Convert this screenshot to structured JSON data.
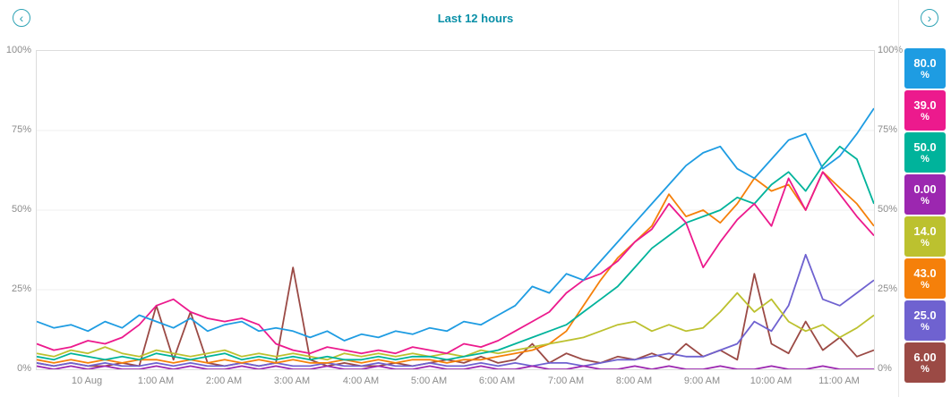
{
  "header": {
    "title": "Last 12 hours",
    "prev_icon": "‹",
    "next_icon": "›"
  },
  "chart_data": {
    "type": "line",
    "title": "Last 12 hours",
    "ylim": [
      0,
      100
    ],
    "grid": "horizontal",
    "legend_position": "right",
    "y_tick_labels": [
      "100%",
      "75%",
      "50%",
      "25%",
      "0%"
    ],
    "y_tick_values": [
      100,
      75,
      50,
      25,
      0
    ],
    "x_tick_labels": [
      "10 Aug",
      "1:00 AM",
      "2:00 AM",
      "3:00 AM",
      "4:00 AM",
      "5:00 AM",
      "6:00 AM",
      "7:00 AM",
      "8:00 AM",
      "9:00 AM",
      "10:00 AM",
      "11:00 AM"
    ],
    "x_tick_indices": [
      3,
      7,
      11,
      15,
      19,
      23,
      27,
      31,
      35,
      39,
      43,
      47
    ],
    "series": [
      {
        "name": "blue",
        "color": "#1e9ce2",
        "display": "80.0",
        "unit": "%",
        "values": [
          15,
          13,
          14,
          12,
          15,
          13,
          17,
          15,
          13,
          16,
          12,
          14,
          15,
          12,
          13,
          12,
          10,
          12,
          9,
          11,
          10,
          12,
          11,
          13,
          12,
          15,
          14,
          17,
          20,
          26,
          24,
          30,
          28,
          34,
          40,
          46,
          52,
          58,
          64,
          68,
          70,
          63,
          60,
          66,
          72,
          74,
          63,
          67,
          74,
          82
        ]
      },
      {
        "name": "pink",
        "color": "#ec1a8d",
        "display": "39.0",
        "unit": "%",
        "values": [
          8,
          6,
          7,
          9,
          8,
          10,
          14,
          20,
          22,
          18,
          16,
          15,
          16,
          14,
          8,
          6,
          5,
          7,
          6,
          5,
          6,
          5,
          7,
          6,
          5,
          8,
          7,
          9,
          12,
          15,
          18,
          24,
          28,
          30,
          34,
          40,
          44,
          52,
          46,
          32,
          40,
          47,
          52,
          45,
          60,
          50,
          62,
          55,
          48,
          42
        ]
      },
      {
        "name": "teal",
        "color": "#00b39b",
        "display": "50.0",
        "unit": "%",
        "values": [
          4,
          3,
          5,
          4,
          3,
          4,
          3,
          5,
          4,
          3,
          4,
          5,
          3,
          4,
          3,
          4,
          3,
          4,
          3,
          3,
          4,
          3,
          4,
          4,
          3,
          4,
          5,
          6,
          8,
          10,
          12,
          14,
          18,
          22,
          26,
          32,
          38,
          42,
          46,
          48,
          50,
          54,
          52,
          58,
          62,
          56,
          64,
          70,
          66,
          52
        ]
      },
      {
        "name": "purple",
        "color": "#9c27b0",
        "display": "0.00",
        "unit": "%",
        "values": [
          1,
          0,
          1,
          0,
          1,
          0,
          0,
          1,
          0,
          1,
          0,
          0,
          1,
          0,
          1,
          0,
          0,
          1,
          0,
          0,
          1,
          0,
          0,
          1,
          0,
          0,
          1,
          0,
          0,
          1,
          0,
          0,
          1,
          0,
          0,
          1,
          0,
          1,
          0,
          0,
          1,
          0,
          0,
          1,
          0,
          0,
          1,
          0,
          0,
          0
        ]
      },
      {
        "name": "olive",
        "color": "#bcc12f",
        "display": "14.0",
        "unit": "%",
        "values": [
          5,
          4,
          6,
          5,
          7,
          5,
          4,
          6,
          5,
          4,
          5,
          6,
          4,
          5,
          4,
          5,
          4,
          3,
          5,
          4,
          5,
          4,
          5,
          4,
          5,
          4,
          6,
          5,
          6,
          7,
          8,
          9,
          10,
          12,
          14,
          15,
          12,
          14,
          12,
          13,
          18,
          24,
          18,
          22,
          15,
          12,
          14,
          10,
          13,
          17
        ]
      },
      {
        "name": "orange",
        "color": "#f5800a",
        "display": "43.0",
        "unit": "%",
        "values": [
          3,
          2,
          3,
          2,
          3,
          2,
          3,
          3,
          2,
          3,
          2,
          3,
          2,
          3,
          2,
          3,
          2,
          2,
          3,
          2,
          3,
          2,
          3,
          3,
          2,
          3,
          3,
          4,
          5,
          6,
          8,
          12,
          20,
          28,
          35,
          40,
          45,
          55,
          48,
          50,
          46,
          52,
          60,
          56,
          58,
          50,
          62,
          57,
          52,
          45
        ]
      },
      {
        "name": "violet",
        "color": "#6f62d0",
        "display": "25.0",
        "unit": "%",
        "values": [
          2,
          1,
          2,
          1,
          2,
          1,
          1,
          2,
          1,
          2,
          1,
          1,
          2,
          1,
          2,
          1,
          1,
          2,
          1,
          1,
          2,
          1,
          1,
          2,
          1,
          1,
          2,
          1,
          2,
          1,
          2,
          2,
          1,
          2,
          3,
          3,
          4,
          5,
          4,
          4,
          6,
          8,
          15,
          12,
          20,
          36,
          22,
          20,
          24,
          28
        ]
      },
      {
        "name": "maroon",
        "color": "#9b4a45",
        "display": "6.00",
        "unit": "%",
        "values": [
          2,
          1,
          2,
          1,
          1,
          2,
          1,
          20,
          3,
          18,
          2,
          1,
          2,
          1,
          2,
          32,
          3,
          1,
          2,
          1,
          1,
          2,
          1,
          2,
          3,
          2,
          4,
          2,
          3,
          8,
          2,
          5,
          3,
          2,
          4,
          3,
          5,
          3,
          8,
          4,
          6,
          3,
          30,
          8,
          5,
          15,
          6,
          10,
          4,
          6
        ]
      }
    ]
  }
}
